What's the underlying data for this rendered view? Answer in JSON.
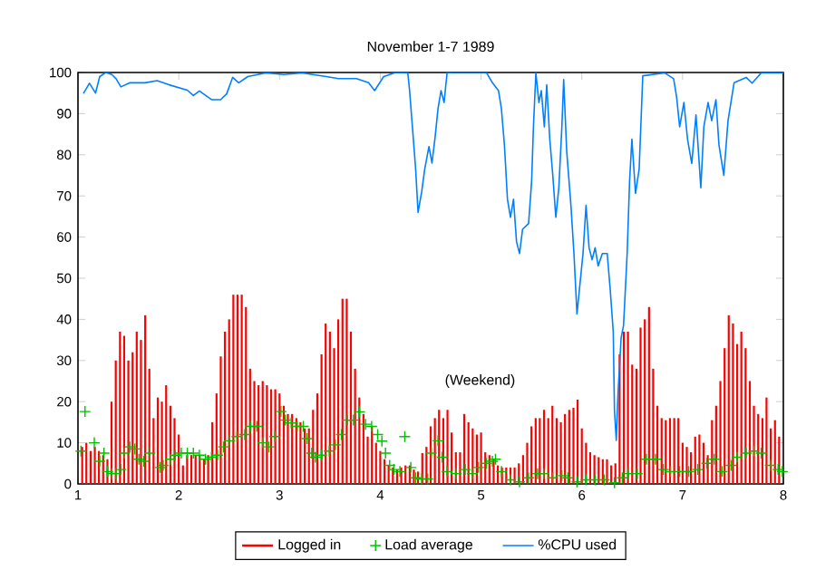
{
  "chart_data": {
    "type": "bar",
    "title": "November 1-7 1989",
    "xlim": [
      1,
      8
    ],
    "ylim": [
      0,
      100
    ],
    "xticks": [
      1,
      2,
      3,
      4,
      5,
      6,
      7,
      8
    ],
    "yticks": [
      0,
      10,
      20,
      30,
      40,
      50,
      60,
      70,
      80,
      90,
      100
    ],
    "legend": "bottom",
    "annotations": [
      "(Weekend)"
    ],
    "series": [
      {
        "name": "Logged in",
        "color": "#ff0000",
        "x": [
          1.042,
          1.083,
          1.125,
          1.167,
          1.208,
          1.25,
          1.292,
          1.333,
          1.375,
          1.417,
          1.458,
          1.5,
          1.542,
          1.583,
          1.625,
          1.667,
          1.708,
          1.75,
          1.792,
          1.833,
          1.875,
          1.917,
          1.958,
          2,
          2.042,
          2.083,
          2.125,
          2.167,
          2.208,
          2.25,
          2.292,
          2.333,
          2.375,
          2.417,
          2.458,
          2.5,
          2.542,
          2.583,
          2.625,
          2.667,
          2.708,
          2.75,
          2.792,
          2.833,
          2.875,
          2.917,
          2.958,
          3,
          3.042,
          3.083,
          3.125,
          3.167,
          3.208,
          3.25,
          3.292,
          3.333,
          3.375,
          3.417,
          3.458,
          3.5,
          3.542,
          3.583,
          3.625,
          3.667,
          3.708,
          3.75,
          3.792,
          3.833,
          3.875,
          3.917,
          3.958,
          4,
          4.042,
          4.083,
          4.125,
          4.167,
          4.208,
          4.25,
          4.292,
          4.333,
          4.375,
          4.417,
          4.458,
          4.5,
          4.542,
          4.583,
          4.625,
          4.667,
          4.708,
          4.75,
          4.792,
          4.833,
          4.875,
          4.917,
          4.958,
          5,
          5.042,
          5.083,
          5.125,
          5.167,
          5.208,
          5.25,
          5.292,
          5.333,
          5.375,
          5.417,
          5.458,
          5.5,
          5.542,
          5.583,
          5.625,
          5.667,
          5.708,
          5.75,
          5.792,
          5.833,
          5.875,
          5.917,
          5.958,
          6,
          6.042,
          6.083,
          6.125,
          6.167,
          6.208,
          6.25,
          6.292,
          6.333,
          6.375,
          6.417,
          6.458,
          6.5,
          6.542,
          6.583,
          6.625,
          6.667,
          6.708,
          6.75,
          6.792,
          6.833,
          6.875,
          6.917,
          6.958,
          7,
          7.042,
          7.083,
          7.125,
          7.167,
          7.208,
          7.25,
          7.292,
          7.333,
          7.375,
          7.417,
          7.458,
          7.5,
          7.542,
          7.583,
          7.625,
          7.667,
          7.708,
          7.75,
          7.792,
          7.833,
          7.875,
          7.917,
          7.958
        ],
        "values": [
          9,
          10,
          8,
          9,
          8,
          7,
          6,
          20,
          30,
          37,
          36,
          30,
          32,
          37,
          35,
          41,
          28,
          16,
          21,
          20,
          24,
          19,
          16,
          12,
          4.5,
          7,
          7,
          7,
          7,
          6,
          7,
          15,
          22,
          31,
          37,
          40,
          46,
          46,
          46,
          43,
          28,
          25,
          24,
          25,
          24,
          23,
          23,
          22,
          19,
          17,
          17,
          16,
          15,
          13.5,
          13.5,
          18,
          22,
          31.5,
          39,
          37,
          33,
          40,
          45,
          45,
          37,
          28,
          21,
          17,
          11.5,
          14,
          10,
          8,
          6,
          4.5,
          4,
          3.5,
          4,
          4.5,
          4.5,
          3.5,
          3,
          7.5,
          9,
          14,
          16,
          18,
          16,
          18,
          12.5,
          7.7,
          7.7,
          17,
          15,
          13.5,
          12,
          12.5,
          7.7,
          7,
          6,
          4.5,
          4,
          4,
          4,
          4,
          5,
          7,
          10,
          14,
          16,
          16,
          18,
          16,
          19,
          16,
          15,
          17,
          18,
          18.5,
          20.5,
          13.5,
          10,
          7.7,
          7,
          6.5,
          6,
          6,
          4.5,
          5,
          31.5,
          37,
          37,
          29,
          28,
          38,
          40,
          43,
          28,
          19,
          16,
          15.5,
          16,
          16,
          16,
          10,
          9,
          7.7,
          11.5,
          12,
          10,
          7,
          15.5,
          19,
          25,
          33,
          41,
          39,
          34,
          37,
          33,
          25,
          19,
          17,
          16,
          21,
          13.5,
          15.5,
          11.5
        ]
      },
      {
        "name": "Load average",
        "type": "scatter",
        "marker": "cross",
        "color": "#00c000",
        "x": [
          1.03,
          1.07,
          1.162,
          1.216,
          1.258,
          1.294,
          1.336,
          1.378,
          1.426,
          1.462,
          1.516,
          1.564,
          1.605,
          1.653,
          1.713,
          1.815,
          1.845,
          1.917,
          1.965,
          2.025,
          2.085,
          2.145,
          2.205,
          2.265,
          2.325,
          2.385,
          2.445,
          2.505,
          2.577,
          2.655,
          2.715,
          2.775,
          2.834,
          2.894,
          2.954,
          3.014,
          3.056,
          3.116,
          3.176,
          3.236,
          3.272,
          3.32,
          3.356,
          3.416,
          3.494,
          3.554,
          3.614,
          3.674,
          3.734,
          3.794,
          3.854,
          3.914,
          3.974,
          4.016,
          4.052,
          4.093,
          4.135,
          4.195,
          4.243,
          4.303,
          4.351,
          4.411,
          4.471,
          4.507,
          4.573,
          4.615,
          4.663,
          4.753,
          4.843,
          4.915,
          4.975,
          5.053,
          5.113,
          5.143,
          5.203,
          5.292,
          5.382,
          5.472,
          5.562,
          5.622,
          5.712,
          5.802,
          5.862,
          5.952,
          6.042,
          6.132,
          6.222,
          6.324,
          6.402,
          6.461,
          6.551,
          6.641,
          6.731,
          6.809,
          6.881,
          6.971,
          7.061,
          7.151,
          7.241,
          7.313,
          7.391,
          7.481,
          7.541,
          7.631,
          7.709,
          7.781,
          7.87,
          7.948,
          7.99
        ],
        "values": [
          8,
          17.6,
          10,
          5.5,
          7.5,
          3,
          2.5,
          2.5,
          3.5,
          7.5,
          9,
          8.5,
          6,
          5.5,
          7.5,
          4,
          4.5,
          6,
          7,
          7.5,
          7.5,
          7.5,
          7,
          6,
          6.5,
          7,
          9,
          10.5,
          11.5,
          12,
          14,
          14,
          10,
          9,
          11.5,
          17.6,
          15.5,
          14.8,
          14,
          14,
          11,
          7.5,
          6.5,
          7,
          8,
          9.5,
          12,
          15.5,
          15.5,
          17.5,
          14.5,
          14,
          12,
          10.4,
          7.5,
          4.5,
          3.5,
          3,
          11.5,
          4,
          1.5,
          1.2,
          1.2,
          7.5,
          10.5,
          6.5,
          3,
          2.5,
          3.5,
          2.5,
          4,
          5,
          5.5,
          6,
          3,
          1,
          0.5,
          1.5,
          2.5,
          2.5,
          1.5,
          2,
          1.5,
          0.5,
          1,
          1,
          1,
          0.3,
          1.5,
          2.5,
          2.5,
          6,
          6,
          3.5,
          3,
          3,
          3,
          3.5,
          5,
          6,
          3,
          4.5,
          6.5,
          7.5,
          8,
          7.5,
          4.5,
          3.5,
          3
        ]
      },
      {
        "name": "%CPU used",
        "type": "line",
        "color": "#0080ff",
        "x": [
          1.054,
          1.114,
          1.174,
          1.216,
          1.276,
          1.336,
          1.378,
          1.426,
          1.516,
          1.665,
          1.785,
          1.905,
          2.085,
          2.145,
          2.205,
          2.325,
          2.415,
          2.475,
          2.535,
          2.595,
          2.685,
          2.864,
          3.044,
          3.224,
          3.464,
          3.584,
          3.764,
          3.884,
          3.944,
          4.034,
          4.153,
          4.273,
          4.291,
          4.315,
          4.333,
          4.351,
          4.375,
          4.411,
          4.441,
          4.483,
          4.513,
          4.543,
          4.573,
          4.603,
          4.633,
          4.663,
          4.723,
          5.053,
          5.113,
          5.173,
          5.202,
          5.232,
          5.262,
          5.292,
          5.322,
          5.352,
          5.382,
          5.412,
          5.472,
          5.502,
          5.52,
          5.544,
          5.574,
          5.598,
          5.628,
          5.652,
          5.682,
          5.712,
          5.742,
          5.772,
          5.802,
          5.82,
          5.85,
          5.892,
          5.922,
          5.952,
          5.982,
          6.012,
          6.042,
          6.072,
          6.102,
          6.132,
          6.162,
          6.204,
          6.252,
          6.282,
          6.312,
          6.324,
          6.342,
          6.36,
          6.39,
          6.414,
          6.45,
          6.474,
          6.497,
          6.533,
          6.569,
          6.605,
          6.821,
          6.911,
          6.941,
          6.971,
          7.013,
          7.049,
          7.091,
          7.133,
          7.181,
          7.211,
          7.253,
          7.289,
          7.331,
          7.361,
          7.409,
          7.451,
          7.511,
          7.631,
          7.69,
          7.78,
          8
        ],
        "values": [
          94.9,
          97.4,
          95,
          99,
          100,
          99.5,
          98.5,
          96.5,
          97.5,
          97.5,
          98,
          97,
          95.7,
          94.4,
          95.5,
          93.4,
          93.4,
          94.8,
          98.8,
          97.5,
          99,
          99.9,
          99.5,
          99.9,
          99,
          98.5,
          98.5,
          97.5,
          95.6,
          99,
          100,
          99.9,
          95.6,
          88,
          82.3,
          76.5,
          66,
          71,
          76.5,
          82,
          78,
          84,
          91.2,
          95.6,
          92.7,
          99.9,
          100,
          100,
          97.5,
          95.6,
          91.2,
          82.4,
          69.2,
          64.8,
          69.2,
          58.9,
          56,
          61.9,
          63.3,
          73.6,
          86.8,
          99.9,
          92.7,
          95.6,
          86.8,
          97,
          83.8,
          75,
          64.8,
          72,
          86.8,
          98.3,
          80.9,
          67.7,
          56,
          41.3,
          48.7,
          56,
          67.7,
          57.4,
          54.5,
          57.4,
          53,
          56,
          56,
          47.2,
          37,
          17.9,
          10.6,
          22.4,
          35.5,
          38.5,
          56,
          73.6,
          83.8,
          70.6,
          76.5,
          99.2,
          99.9,
          98.5,
          94,
          86.8,
          92.7,
          83.8,
          77.9,
          89.7,
          72,
          86.8,
          92.7,
          88.3,
          93.4,
          82.4,
          75,
          88.3,
          97.5,
          98.8,
          97.4,
          99.9,
          99.9
        ]
      }
    ]
  }
}
